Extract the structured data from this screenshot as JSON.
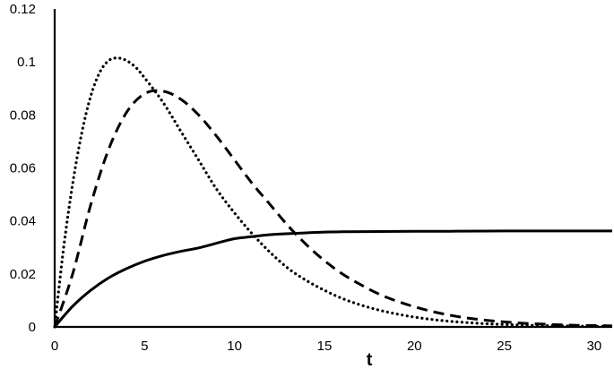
{
  "chart_data": {
    "type": "line",
    "title": "",
    "xlabel": "t",
    "ylabel": "",
    "xlim": [
      0,
      31
    ],
    "ylim": [
      0,
      0.12
    ],
    "grid": false,
    "legend": "none",
    "x_ticks": [
      0,
      5,
      10,
      15,
      20,
      25,
      30
    ],
    "x_tick_labels": [
      "0",
      "5",
      "10",
      "15",
      "20",
      "25",
      "30"
    ],
    "y_ticks": [
      0,
      0.02,
      0.04,
      0.06,
      0.08,
      0.1,
      0.12
    ],
    "y_tick_labels": [
      "0",
      "0.02",
      "0.04",
      "0.06",
      "0.08",
      "0.1",
      "0.12"
    ],
    "series": [
      {
        "style": "solid",
        "color": "#000000",
        "x": [
          0,
          1,
          2,
          3,
          4,
          5,
          6,
          7,
          8,
          9,
          10,
          11,
          12,
          13,
          14,
          15,
          16,
          18,
          20,
          22,
          25,
          28,
          31
        ],
        "values": [
          0,
          0.0078,
          0.0138,
          0.0185,
          0.022,
          0.0248,
          0.0269,
          0.0285,
          0.0298,
          0.0316,
          0.0333,
          0.0341,
          0.0348,
          0.0352,
          0.0355,
          0.0358,
          0.0359,
          0.036,
          0.0361,
          0.0361,
          0.0362,
          0.0362,
          0.0362
        ]
      },
      {
        "style": "dashed",
        "color": "#000000",
        "x": [
          0,
          1,
          2,
          3,
          4,
          5,
          6,
          7,
          8,
          9,
          10,
          11,
          12,
          13,
          14,
          15,
          16,
          17,
          18,
          19,
          20,
          21,
          22,
          23,
          24,
          25,
          26,
          27,
          28,
          29,
          30,
          31
        ],
        "values": [
          0,
          0.02,
          0.046,
          0.067,
          0.081,
          0.088,
          0.089,
          0.086,
          0.08,
          0.072,
          0.063,
          0.054,
          0.046,
          0.038,
          0.031,
          0.025,
          0.02,
          0.016,
          0.0125,
          0.0098,
          0.0076,
          0.0058,
          0.0044,
          0.0033,
          0.0025,
          0.0019,
          0.0014,
          0.0011,
          0.0008,
          0.0006,
          0.0005,
          0.0004
        ]
      },
      {
        "style": "dotted",
        "color": "#000000",
        "x": [
          0,
          0.5,
          1,
          1.5,
          2,
          2.5,
          3,
          3.5,
          4,
          4.5,
          5,
          6,
          7,
          8,
          9,
          10,
          11,
          12,
          13,
          14,
          15,
          16,
          17,
          18,
          19,
          20,
          21,
          22,
          23,
          24,
          25,
          26,
          27,
          28,
          29,
          30,
          31
        ],
        "values": [
          0,
          0.03,
          0.054,
          0.073,
          0.087,
          0.096,
          0.1005,
          0.1015,
          0.1005,
          0.098,
          0.094,
          0.085,
          0.074,
          0.063,
          0.052,
          0.043,
          0.035,
          0.028,
          0.022,
          0.0175,
          0.0138,
          0.0107,
          0.0083,
          0.0064,
          0.0049,
          0.0037,
          0.0028,
          0.0021,
          0.0016,
          0.0012,
          0.0009,
          0.0007,
          0.0005,
          0.0004,
          0.0003,
          0.0002,
          0.0002
        ]
      }
    ]
  }
}
